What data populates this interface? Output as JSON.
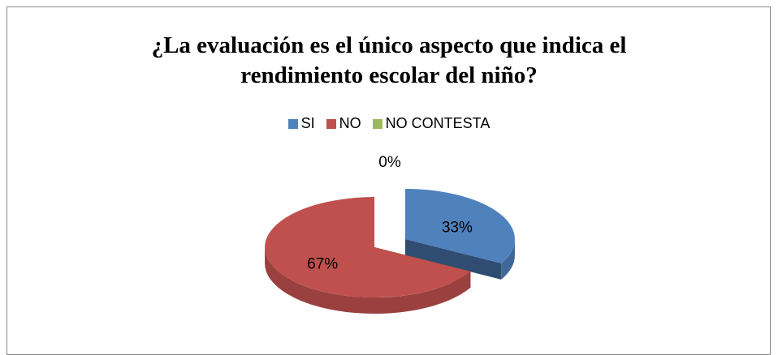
{
  "chart_data": {
    "type": "pie",
    "title": "¿La evaluación es el único aspecto que indica el rendimiento escolar del niño?",
    "categories": [
      "SI",
      "NO",
      "NO CONTESTA"
    ],
    "values": [
      33,
      67,
      0
    ],
    "value_labels": [
      "33%",
      "67%",
      "0%"
    ],
    "colors": [
      "#4f81bd",
      "#c0504d",
      "#9bbb59"
    ],
    "legend": "top",
    "exploded": true,
    "three_d": true
  }
}
